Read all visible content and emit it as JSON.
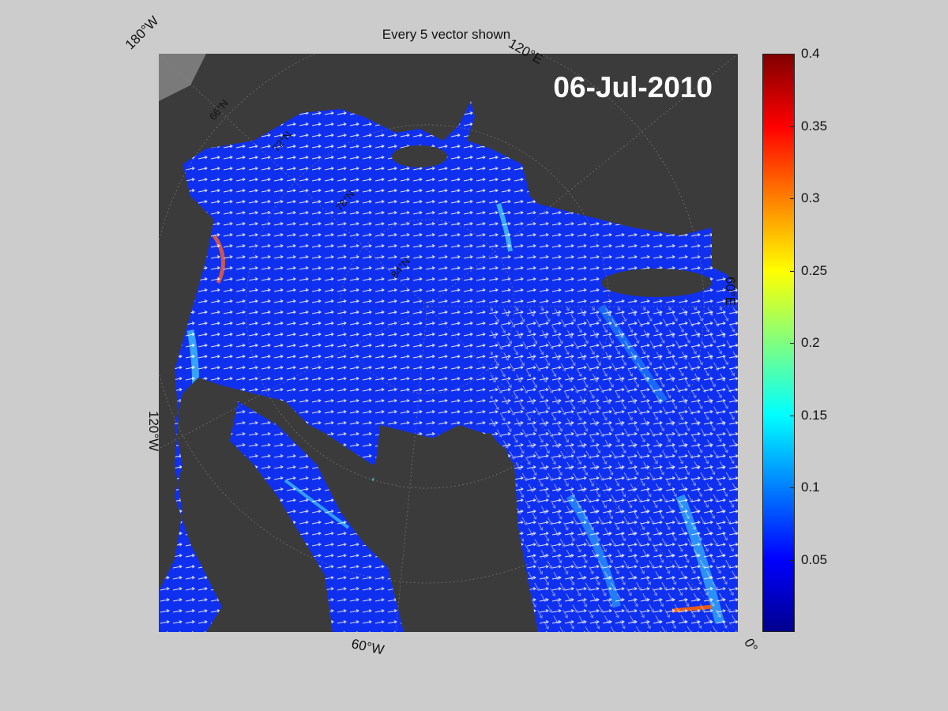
{
  "title": "Every 5 vector shown",
  "date": "06-Jul-2010",
  "lon_labels": {
    "top_left": "180°W",
    "top_right": "120°E",
    "right": "60°E",
    "left": "120°W",
    "bottom": "60°W",
    "bottom_right": "0°"
  },
  "lat_labels": [
    "66°N",
    "72°N",
    "78°N",
    "84°N"
  ],
  "colorbar": {
    "colormap": "jet",
    "min": 0,
    "max": 0.4,
    "ticks": [
      "0.4",
      "0.35",
      "0.3",
      "0.25",
      "0.2",
      "0.15",
      "0.1",
      "0.05"
    ]
  },
  "colors": {
    "figure_background": "#cccccc",
    "land": "#3b3b3b",
    "ocean_field": "#1030f0",
    "vectors": "#ffffff",
    "outside_domain": "#7a7a7a"
  }
}
